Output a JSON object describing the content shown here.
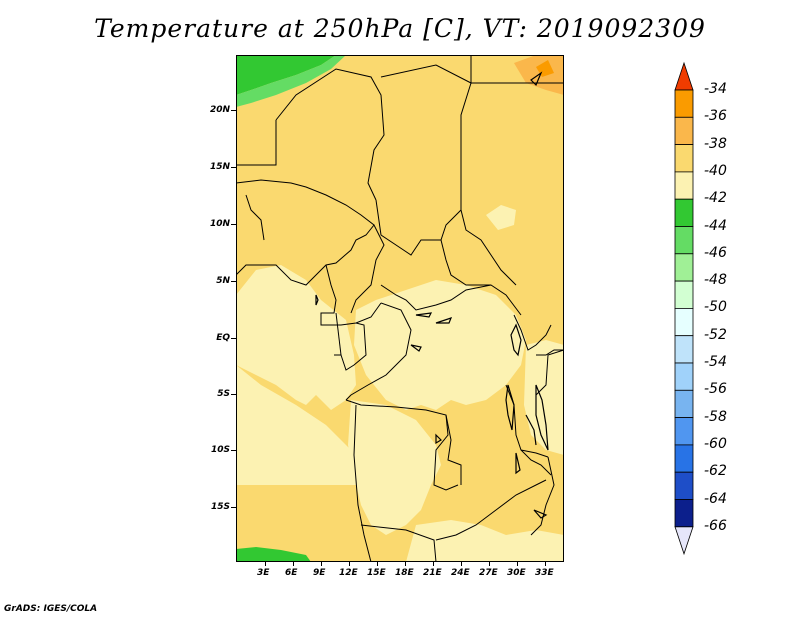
{
  "title": "Temperature at 250hPa [C], VT: 2019092309",
  "footer": "GrADS: IGES/COLA",
  "lat_labels": [
    "20N",
    "15N",
    "10N",
    "5N",
    "EQ",
    "5S",
    "10S",
    "15S"
  ],
  "lon_labels": [
    "3E",
    "6E",
    "9E",
    "12E",
    "15E",
    "18E",
    "21E",
    "24E",
    "27E",
    "30E",
    "33E"
  ],
  "colorbar": {
    "labels": [
      "-34",
      "-36",
      "-38",
      "-40",
      "-42",
      "-44",
      "-46",
      "-48",
      "-50",
      "-52",
      "-54",
      "-56",
      "-58",
      "-60",
      "-62",
      "-64",
      "-66"
    ],
    "colors": [
      "#fa5a00",
      "#fa9b00",
      "#fab74b",
      "#fad96f",
      "#fcf2b2",
      "#32c832",
      "#64dc64",
      "#a0f096",
      "#d2ffd2",
      "#e6ffff",
      "#bfe3fa",
      "#a0d2fa",
      "#78b4f0",
      "#5096f0",
      "#2873e6",
      "#1e4ec8",
      "#0c1f8c"
    ],
    "top_arrow_color": "#f03c00",
    "bottom_arrow_color": "#e6e6fa"
  },
  "map_colors": {
    "level_40_38": "#fad96f",
    "level_42_40": "#fcf2b2",
    "level_38_36": "#fab74b",
    "level_36_34": "#fa9b00",
    "level_46_44": "#32c832",
    "level_48_46": "#64dc64"
  }
}
